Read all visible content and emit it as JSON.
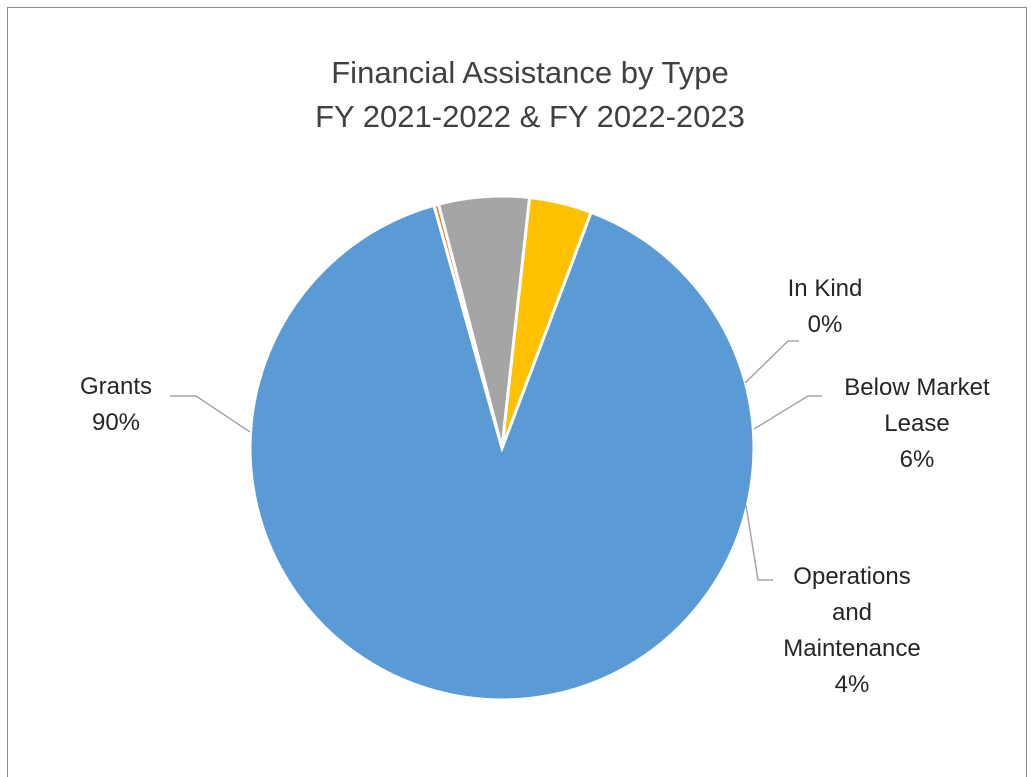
{
  "chart_data": {
    "type": "pie",
    "title": "Financial Assistance by Type",
    "subtitle": "FY 2021-2022 & FY 2022-2023",
    "slices": [
      {
        "name": "Grants",
        "label_lines": [
          "Grants"
        ],
        "pct_label": "90%",
        "value": 89.9,
        "color": "#5b9bd5"
      },
      {
        "name": "In Kind",
        "label_lines": [
          "In Kind"
        ],
        "pct_label": "0%",
        "value": 0.3,
        "color": "#ed7d31"
      },
      {
        "name": "Below Market Lease",
        "label_lines": [
          "Below Market",
          "Lease"
        ],
        "pct_label": "6%",
        "value": 5.8,
        "color": "#a5a5a5"
      },
      {
        "name": "Operations and Maintenance",
        "label_lines": [
          "Operations",
          "and",
          "Maintenance"
        ],
        "pct_label": "4%",
        "value": 4.0,
        "color": "#ffc000"
      }
    ],
    "legend": "none",
    "data_labels": "outside with leader lines"
  }
}
